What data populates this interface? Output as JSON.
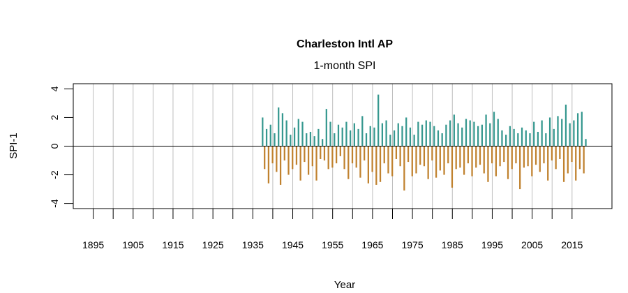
{
  "chart_data": {
    "type": "bar",
    "title": "Charleston Intl AP",
    "subtitle": "1-month SPI",
    "xlabel": "Year",
    "ylabel": "SPI-1",
    "xlim": [
      1890,
      2025
    ],
    "ylim": [
      -4.36,
      4.36
    ],
    "x_ticks": [
      1895,
      1900,
      1905,
      1910,
      1915,
      1920,
      1925,
      1930,
      1935,
      1940,
      1945,
      1950,
      1955,
      1960,
      1965,
      1970,
      1975,
      1980,
      1985,
      1990,
      1995,
      2000,
      2005,
      2010,
      2015
    ],
    "x_tick_labels": [
      "1895",
      "1905",
      "1915",
      "1925",
      "1935",
      "1945",
      "1955",
      "1965",
      "1975",
      "1985",
      "1995",
      "2005",
      "2015"
    ],
    "x_tick_label_years": [
      1895,
      1905,
      1915,
      1925,
      1935,
      1945,
      1955,
      1965,
      1975,
      1985,
      1995,
      2005,
      2015
    ],
    "y_ticks": [
      4,
      2,
      0,
      -2,
      -4
    ],
    "y_tick_labels": [
      "4",
      "2",
      "0",
      "-2",
      "-4"
    ],
    "grid": "vertical lines every 5 years",
    "zero_line": true,
    "colors": {
      "positive": "#36988f",
      "negative": "#c0822f",
      "grid": "#bebebe"
    },
    "series_start_year": 1937.5,
    "series_step_years": 0.5,
    "values": [
      2.0,
      -1.6,
      1.2,
      -2.6,
      1.5,
      -1.2,
      0.9,
      -1.8,
      2.7,
      -2.7,
      2.3,
      -1.0,
      1.8,
      -2.0,
      0.8,
      -1.6,
      1.3,
      -1.3,
      1.9,
      -2.4,
      1.7,
      -1.1,
      0.9,
      -2.0,
      1.0,
      -1.4,
      0.7,
      -2.4,
      1.2,
      -0.9,
      0.5,
      -1.0,
      2.6,
      -1.6,
      1.7,
      -1.5,
      0.9,
      -1.2,
      1.5,
      -0.7,
      1.3,
      -1.6,
      1.7,
      -2.3,
      1.1,
      -1.2,
      1.6,
      -1.5,
      1.2,
      -2.2,
      2.1,
      -1.0,
      0.9,
      -2.6,
      1.4,
      -1.8,
      1.3,
      -2.7,
      3.6,
      -2.5,
      1.6,
      -1.2,
      1.8,
      -1.9,
      0.8,
      -2.1,
      1.1,
      -0.9,
      1.6,
      -1.4,
      1.4,
      -3.1,
      2.0,
      -1.1,
      1.3,
      -2.1,
      0.8,
      -1.9,
      1.7,
      -1.3,
      1.5,
      -1.4,
      1.8,
      -2.3,
      1.7,
      -1.0,
      1.4,
      -2.2,
      1.1,
      -1.7,
      0.9,
      -2.0,
      1.5,
      -1.2,
      1.8,
      -2.9,
      2.2,
      -1.6,
      1.6,
      -1.5,
      1.3,
      -2.0,
      1.9,
      -1.2,
      1.8,
      -2.1,
      1.7,
      -1.5,
      1.4,
      -1.3,
      1.5,
      -1.9,
      2.2,
      -2.5,
      1.6,
      -1.2,
      2.4,
      -2.1,
      1.9,
      -1.4,
      1.1,
      -1.1,
      0.8,
      -2.3,
      1.4,
      -1.6,
      1.2,
      -1.2,
      0.9,
      -3.0,
      1.3,
      -1.5,
      1.1,
      -1.4,
      0.9,
      -2.1,
      1.7,
      -1.3,
      1.0,
      -1.8,
      1.8,
      -1.2,
      0.9,
      -2.4,
      2.0,
      -1.0,
      1.2,
      -1.6,
      2.1,
      -0.9,
      1.9,
      -2.5,
      2.9,
      -1.9,
      1.6,
      -1.1,
      1.8,
      -2.4,
      2.3,
      -1.6,
      2.4,
      -1.9,
      0.5
    ]
  }
}
